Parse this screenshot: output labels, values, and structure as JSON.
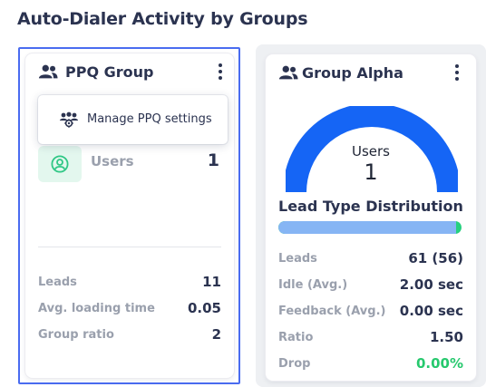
{
  "section": {
    "title": "Auto-Dialer Activity by Groups"
  },
  "card1": {
    "title": "PPQ Group",
    "users_label": "Users",
    "users_value": "1",
    "stats": [
      {
        "label": "Leads",
        "value": "11"
      },
      {
        "label": "Avg. loading time",
        "value": "0.05"
      },
      {
        "label": "Group ratio",
        "value": "2"
      }
    ]
  },
  "dropdown": {
    "items": [
      {
        "label": "Manage PPQ settings",
        "icon": "group-settings-icon"
      }
    ]
  },
  "card2": {
    "title": "Group Alpha",
    "gauge": {
      "label": "Users",
      "value": "1",
      "fill_fraction": 1.0,
      "color": "#1565f5"
    },
    "distribution": {
      "title": "Lead Type Distribution",
      "primary_fraction": 0.97,
      "primary_color": "#86b5f4",
      "secondary_color": "#27d07f"
    },
    "stats": [
      {
        "label": "Leads",
        "value": "61 (56)"
      },
      {
        "label": "Idle (Avg.)",
        "value": "2.00 sec"
      },
      {
        "label": "Feedback (Avg.)",
        "value": "0.00 sec"
      },
      {
        "label": "Ratio",
        "value": "1.50"
      },
      {
        "label": "Drop",
        "value": "0.00%",
        "color": "#27c96e"
      }
    ]
  }
}
